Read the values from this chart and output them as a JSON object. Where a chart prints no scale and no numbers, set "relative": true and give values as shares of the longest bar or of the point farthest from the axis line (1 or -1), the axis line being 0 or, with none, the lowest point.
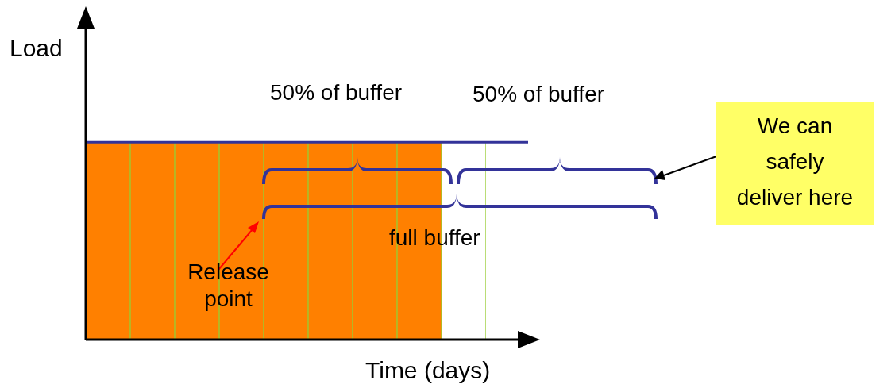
{
  "chart_data": {
    "type": "bar",
    "relative": true,
    "xlabel": "Time (days)",
    "ylabel": "Load",
    "categories": [
      null,
      null,
      null,
      null,
      null,
      null,
      null,
      null,
      null
    ],
    "values": [
      1,
      1,
      1,
      1,
      1,
      1,
      1,
      1,
      1
    ],
    "colors": [
      "#ff8000",
      "#ff8000",
      "#ff8000",
      "#ff8000",
      "#ff8000",
      "#ff8000",
      "#ff8000",
      "#ff8000",
      "#ffffff"
    ],
    "ref_lines": [
      {
        "axis": "y",
        "value": 1,
        "color": "#333399"
      }
    ],
    "annotations": [
      "50% of buffer",
      "50% of buffer",
      "full buffer",
      "Release point",
      "We can safely deliver here"
    ],
    "tick_labels": false,
    "grid": false,
    "legend": false
  }
}
